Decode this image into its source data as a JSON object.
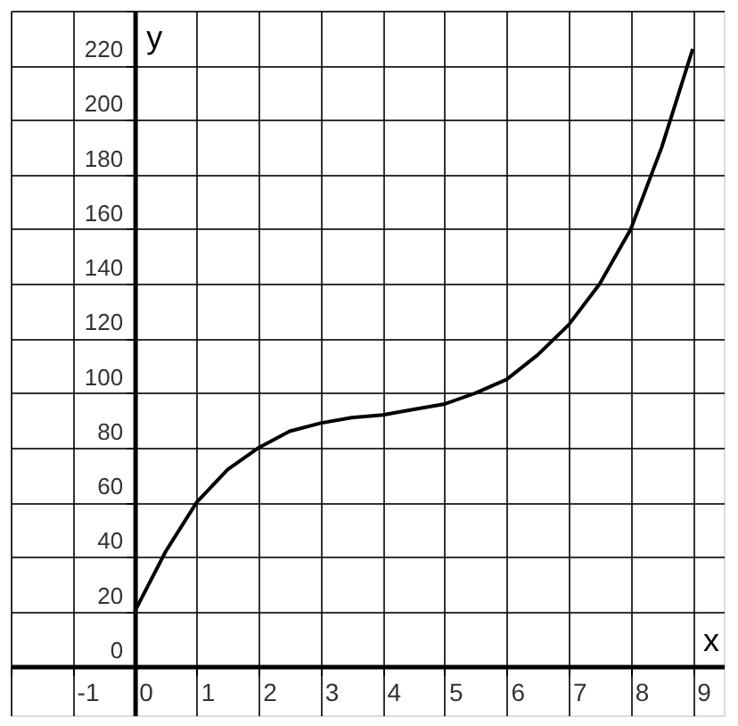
{
  "chart_data": {
    "type": "line",
    "xlabel": "x",
    "ylabel": "y",
    "x": [
      0,
      0.5,
      1,
      1.5,
      2,
      2.5,
      3,
      3.5,
      4,
      4.5,
      5,
      5.5,
      6,
      6.5,
      7,
      7.5,
      8,
      8.5,
      9
    ],
    "series": [
      {
        "color": "#000000",
        "values": [
          20,
          42,
          60,
          72,
          80,
          86,
          89,
          91,
          92,
          94,
          96,
          100,
          105,
          114,
          125,
          140,
          160,
          190,
          226
        ]
      }
    ],
    "xlim": [
      -2,
      9.5
    ],
    "ylim": [
      -18,
      240
    ],
    "xticks": [
      {
        "value": -2,
        "label": null
      },
      -1,
      0,
      1,
      2,
      3,
      4,
      5,
      6,
      7,
      8,
      9
    ],
    "yticks": [
      0,
      20,
      40,
      60,
      80,
      100,
      120,
      140,
      160,
      180,
      200,
      220,
      {
        "value": 240,
        "label": null
      }
    ],
    "grid": true,
    "marker": "none",
    "line_style": "solid",
    "legend": false
  }
}
